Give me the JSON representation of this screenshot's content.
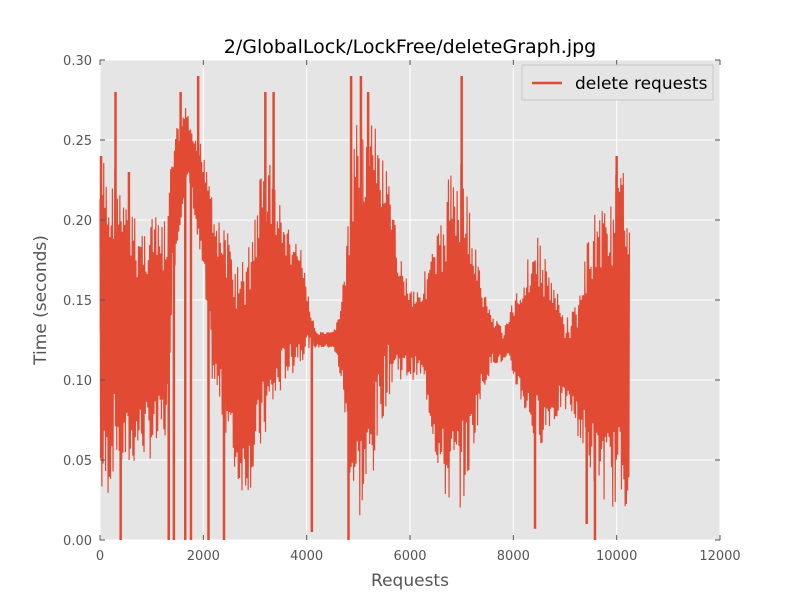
{
  "chart_data": {
    "type": "line",
    "title": "2/GlobalLock/LockFree/deleteGraph.jpg",
    "xlabel": "Requests",
    "ylabel": "Time (seconds)",
    "xlim": [
      0,
      12000
    ],
    "ylim": [
      0.0,
      0.3
    ],
    "xticks": [
      "0",
      "2000",
      "4000",
      "6000",
      "8000",
      "10000",
      "12000"
    ],
    "yticks": [
      "0.00",
      "0.05",
      "0.10",
      "0.15",
      "0.20",
      "0.25",
      "0.30"
    ],
    "grid": true,
    "legend_position": "top-right",
    "colors": {
      "series": "#E24A33",
      "plot_bg": "#E5E5E5",
      "grid": "#FFFFFF"
    },
    "series": [
      {
        "name": "delete requests",
        "envelope": {
          "x": [
            0,
            100,
            200,
            300,
            400,
            500,
            600,
            700,
            800,
            900,
            1000,
            1100,
            1200,
            1300,
            1400,
            1500,
            1600,
            1700,
            1800,
            1900,
            2000,
            2100,
            2200,
            2300,
            2400,
            2500,
            2600,
            2700,
            2800,
            2900,
            3000,
            3100,
            3200,
            3300,
            3400,
            3500,
            3600,
            3700,
            3800,
            3900,
            4000,
            4100,
            4200,
            4300,
            4400,
            4500,
            4600,
            4700,
            4800,
            4900,
            5000,
            5100,
            5200,
            5300,
            5400,
            5500,
            5600,
            5700,
            5800,
            5900,
            6000,
            6100,
            6200,
            6300,
            6400,
            6500,
            6600,
            6700,
            6800,
            6900,
            7000,
            7100,
            7200,
            7300,
            7400,
            7500,
            7600,
            7700,
            7800,
            7900,
            8000,
            8100,
            8200,
            8300,
            8400,
            8500,
            8600,
            8700,
            8800,
            8900,
            9000,
            9100,
            9200,
            9300,
            9400,
            9500,
            9600,
            9700,
            9800,
            9900,
            10000,
            10100,
            10200,
            10250
          ],
          "upper": [
            0.24,
            0.24,
            0.22,
            0.24,
            0.22,
            0.21,
            0.21,
            0.2,
            0.2,
            0.2,
            0.21,
            0.2,
            0.2,
            0.2,
            0.25,
            0.26,
            0.27,
            0.27,
            0.25,
            0.25,
            0.25,
            0.24,
            0.22,
            0.2,
            0.2,
            0.19,
            0.18,
            0.17,
            0.18,
            0.19,
            0.21,
            0.23,
            0.24,
            0.24,
            0.22,
            0.21,
            0.2,
            0.19,
            0.19,
            0.18,
            0.16,
            0.14,
            0.13,
            0.13,
            0.13,
            0.13,
            0.14,
            0.16,
            0.2,
            0.24,
            0.27,
            0.27,
            0.27,
            0.26,
            0.25,
            0.24,
            0.22,
            0.2,
            0.18,
            0.17,
            0.16,
            0.16,
            0.16,
            0.17,
            0.18,
            0.19,
            0.2,
            0.22,
            0.24,
            0.24,
            0.24,
            0.22,
            0.2,
            0.18,
            0.16,
            0.15,
            0.14,
            0.14,
            0.13,
            0.14,
            0.15,
            0.16,
            0.17,
            0.18,
            0.19,
            0.19,
            0.18,
            0.17,
            0.16,
            0.15,
            0.14,
            0.14,
            0.15,
            0.16,
            0.18,
            0.2,
            0.21,
            0.21,
            0.22,
            0.22,
            0.23,
            0.23,
            0.23,
            0.23
          ],
          "lower": [
            0.02,
            0.02,
            0.03,
            0.05,
            0.04,
            0.04,
            0.04,
            0.05,
            0.05,
            0.05,
            0.05,
            0.05,
            0.06,
            0.06,
            0.16,
            0.18,
            0.21,
            0.22,
            0.21,
            0.18,
            0.16,
            0.12,
            0.09,
            0.08,
            0.07,
            0.06,
            0.04,
            0.03,
            0.03,
            0.03,
            0.04,
            0.05,
            0.06,
            0.07,
            0.08,
            0.09,
            0.1,
            0.1,
            0.11,
            0.11,
            0.12,
            0.12,
            0.12,
            0.12,
            0.12,
            0.12,
            0.11,
            0.09,
            0.05,
            0.02,
            0.01,
            0.01,
            0.02,
            0.04,
            0.06,
            0.08,
            0.09,
            0.1,
            0.1,
            0.1,
            0.1,
            0.1,
            0.1,
            0.09,
            0.07,
            0.05,
            0.03,
            0.02,
            0.02,
            0.02,
            0.02,
            0.03,
            0.05,
            0.07,
            0.09,
            0.1,
            0.11,
            0.11,
            0.11,
            0.11,
            0.1,
            0.09,
            0.08,
            0.07,
            0.06,
            0.06,
            0.06,
            0.07,
            0.07,
            0.08,
            0.08,
            0.08,
            0.07,
            0.06,
            0.05,
            0.04,
            0.03,
            0.03,
            0.02,
            0.02,
            0.02,
            0.02,
            0.02,
            0.02
          ]
        },
        "spikes": [
          {
            "x": 20,
            "y": 0.24
          },
          {
            "x": 300,
            "y": 0.28
          },
          {
            "x": 560,
            "y": 0.23
          },
          {
            "x": 1560,
            "y": 0.28
          },
          {
            "x": 1900,
            "y": 0.29
          },
          {
            "x": 3200,
            "y": 0.28
          },
          {
            "x": 3360,
            "y": 0.28
          },
          {
            "x": 4860,
            "y": 0.29
          },
          {
            "x": 5050,
            "y": 0.29
          },
          {
            "x": 5190,
            "y": 0.28
          },
          {
            "x": 7000,
            "y": 0.29
          },
          {
            "x": 10000,
            "y": 0.24
          },
          {
            "x": 1330,
            "y": 0.0
          },
          {
            "x": 1430,
            "y": 0.0
          },
          {
            "x": 1650,
            "y": 0.0
          },
          {
            "x": 1760,
            "y": 0.0
          },
          {
            "x": 2100,
            "y": 0.0
          },
          {
            "x": 2400,
            "y": 0.0
          },
          {
            "x": 400,
            "y": 0.0
          },
          {
            "x": 4100,
            "y": 0.005
          },
          {
            "x": 4810,
            "y": 0.0
          },
          {
            "x": 8420,
            "y": 0.007
          },
          {
            "x": 9420,
            "y": 0.01
          },
          {
            "x": 9580,
            "y": 0.0
          }
        ]
      }
    ]
  }
}
